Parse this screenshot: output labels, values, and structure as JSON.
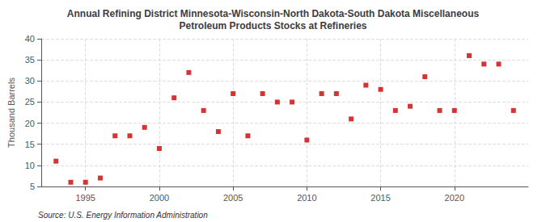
{
  "chart_data": {
    "type": "scatter",
    "title": "Annual Refining District Minnesota-Wisconsin-North Dakota-South Dakota Miscellaneous\nPetroleum Products Stocks at Refineries",
    "ylabel": "Thousand Barrels",
    "annotations": [
      "Source: U.S. Energy Information Administration"
    ],
    "x": [
      1993,
      1994,
      1995,
      1996,
      1997,
      1998,
      1999,
      2000,
      2001,
      2002,
      2003,
      2004,
      2005,
      2006,
      2007,
      2008,
      2009,
      2010,
      2011,
      2012,
      2013,
      2014,
      2015,
      2016,
      2017,
      2018,
      2019,
      2020,
      2021,
      2022,
      2023,
      2024
    ],
    "values": [
      11,
      6,
      6,
      7,
      17,
      17,
      19,
      14,
      26,
      32,
      23,
      18,
      27,
      17,
      27,
      25,
      25,
      16,
      27,
      27,
      21,
      29,
      28,
      23,
      24,
      31,
      23,
      23,
      36,
      34,
      34,
      23
    ],
    "color": "#cc0000",
    "marker": "square",
    "xlim": [
      1992,
      2025
    ],
    "xticks": [
      1995,
      2000,
      2005,
      2010,
      2015,
      2020
    ],
    "ylim": [
      5,
      40
    ],
    "yticks": [
      5,
      10,
      15,
      20,
      25,
      30,
      35,
      40
    ],
    "grid": true
  }
}
